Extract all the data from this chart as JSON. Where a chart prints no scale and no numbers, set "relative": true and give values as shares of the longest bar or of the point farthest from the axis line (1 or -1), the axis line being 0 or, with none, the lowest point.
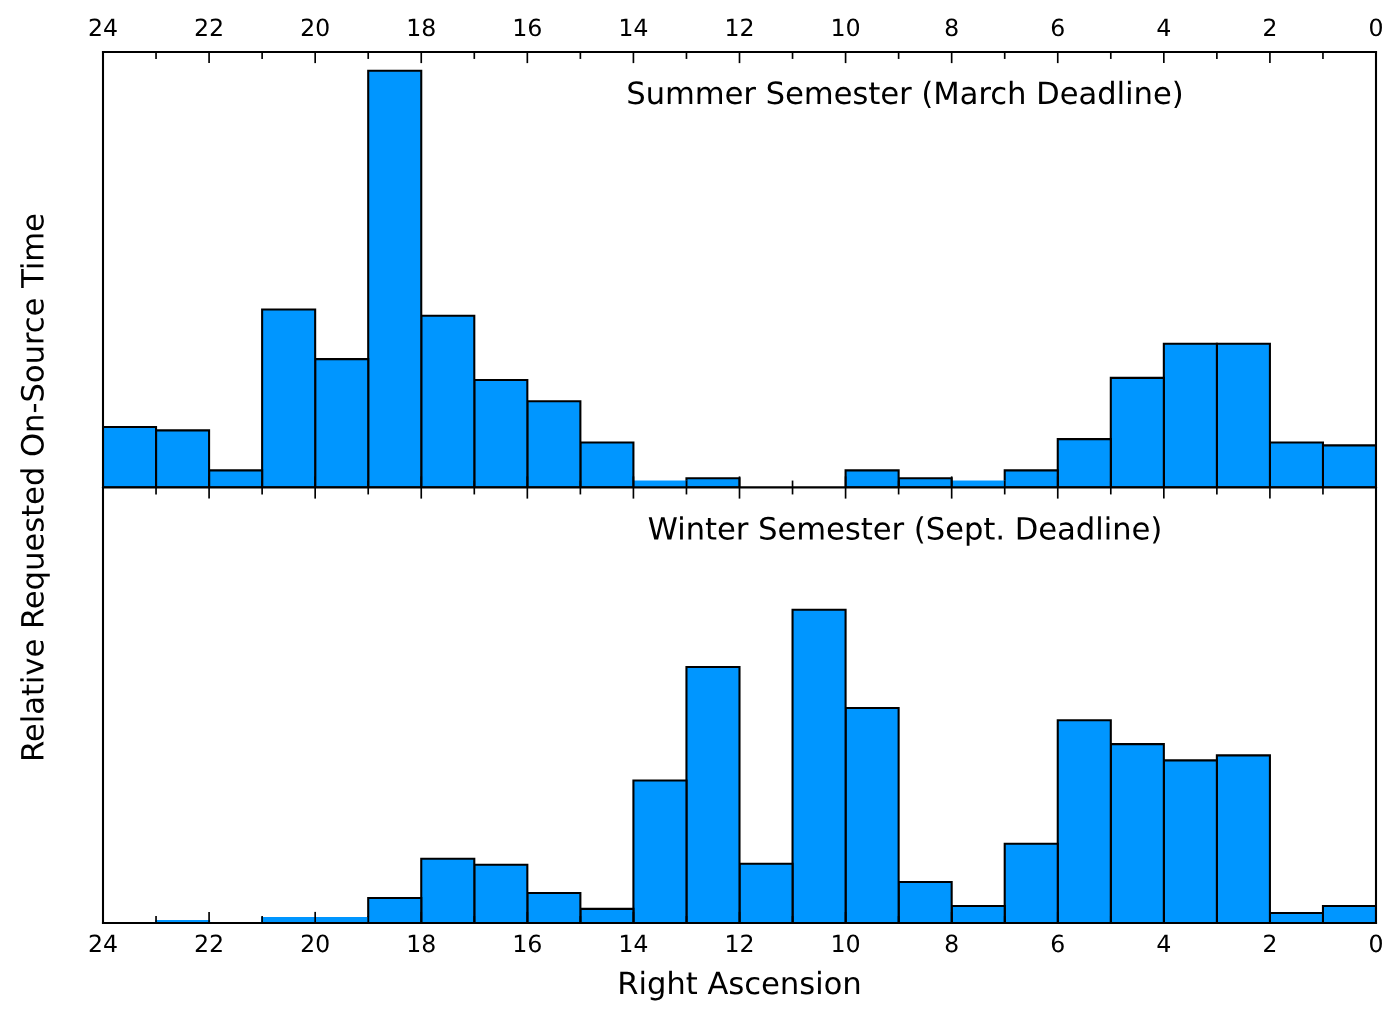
{
  "chart_data": [
    {
      "type": "bar",
      "title": "Summer Semester (March Deadline)",
      "ylabel": "Relative Requested On-Source Time",
      "relative": true,
      "color": "#0096ff",
      "x": [
        0.5,
        1.5,
        2.5,
        3.5,
        4.5,
        5.5,
        6.5,
        7.5,
        8.5,
        9.5,
        10.5,
        11.5,
        12.5,
        13.5,
        14.5,
        15.5,
        16.5,
        17.5,
        18.5,
        19.5,
        20.5,
        21.5,
        22.5,
        23.5
      ],
      "values": [
        0.101,
        0.108,
        0.345,
        0.345,
        0.263,
        0.116,
        0.041,
        0.014,
        0.022,
        0.041,
        null,
        null,
        0.022,
        0.014,
        0.108,
        0.207,
        0.258,
        0.412,
        1,
        0.308,
        0.427,
        0.041,
        0.137,
        0.145
      ],
      "xlim": [
        24,
        0
      ],
      "xticks": [
        24,
        22,
        20,
        18,
        16,
        14,
        12,
        10,
        8,
        6,
        4,
        2,
        0
      ],
      "grid": false,
      "legend": false
    },
    {
      "type": "bar",
      "title": "Winter Semester (Sept. Deadline)",
      "xlabel": "Right Ascension",
      "relative": true,
      "color": "#0096ff",
      "x": [
        0.5,
        1.5,
        2.5,
        3.5,
        4.5,
        5.5,
        6.5,
        7.5,
        8.5,
        9.5,
        10.5,
        11.5,
        12.5,
        13.5,
        14.5,
        15.5,
        16.5,
        17.5,
        18.5,
        19.5,
        20.5,
        21.5,
        22.5,
        23.5
      ],
      "values": [
        0.054,
        0.032,
        0.535,
        0.519,
        0.571,
        0.647,
        0.253,
        0.054,
        0.131,
        0.686,
        1,
        0.189,
        0.817,
        0.455,
        0.045,
        0.096,
        0.186,
        0.205,
        0.08,
        0.016,
        0.016,
        0,
        0.006,
        0
      ],
      "xlim": [
        24,
        0
      ],
      "xticks": [
        24,
        22,
        20,
        18,
        16,
        14,
        12,
        10,
        8,
        6,
        4,
        2,
        0
      ],
      "grid": false,
      "legend": false
    }
  ]
}
